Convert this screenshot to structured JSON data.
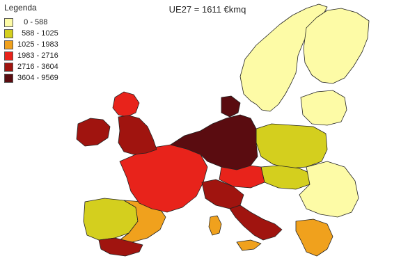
{
  "title": "UE27 = 1611 €kmq",
  "legend": {
    "title": "Legenda",
    "items": [
      {
        "label": "   0 - 588",
        "color": "#fdfba6"
      },
      {
        "label": "  588 - 1025",
        "color": "#d4cf1e"
      },
      {
        "label": "1025 - 1983",
        "color": "#f0a11d"
      },
      {
        "label": "1983 - 2716",
        "color": "#e8231b"
      },
      {
        "label": "2716 - 3604",
        "color": "#a0140f"
      },
      {
        "label": "3604 - 9569",
        "color": "#5a0c10"
      }
    ]
  },
  "regions": [
    {
      "name": "scandinavia",
      "color": "#fdfba6"
    },
    {
      "name": "finland",
      "color": "#fdfba6"
    },
    {
      "name": "baltics",
      "color": "#fdfba6"
    },
    {
      "name": "poland",
      "color": "#d4cf1e"
    },
    {
      "name": "romania-bulgaria",
      "color": "#fdfba6"
    },
    {
      "name": "hungary-slovakia",
      "color": "#d4cf1e"
    },
    {
      "name": "greece",
      "color": "#f0a11d"
    },
    {
      "name": "iberia-west",
      "color": "#d4cf1e"
    },
    {
      "name": "iberia-east",
      "color": "#f0a11d"
    },
    {
      "name": "andalusia",
      "color": "#a0140f"
    },
    {
      "name": "france",
      "color": "#e8231b"
    },
    {
      "name": "uk",
      "color": "#a0140f"
    },
    {
      "name": "scotland",
      "color": "#e8231b"
    },
    {
      "name": "ireland",
      "color": "#a0140f"
    },
    {
      "name": "benelux-germany",
      "color": "#5a0c10"
    },
    {
      "name": "denmark",
      "color": "#5a0c10"
    },
    {
      "name": "austria-czech",
      "color": "#e8231b"
    },
    {
      "name": "italy-north",
      "color": "#a0140f"
    },
    {
      "name": "italy-south",
      "color": "#a0140f"
    },
    {
      "name": "sardinia",
      "color": "#f0a11d"
    },
    {
      "name": "sicily",
      "color": "#f0a11d"
    }
  ]
}
